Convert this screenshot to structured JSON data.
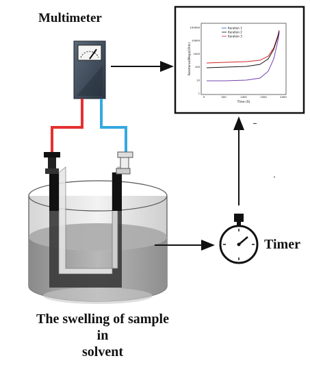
{
  "labels": {
    "multimeter": "Multimeter",
    "timer": "Timer",
    "caption_line1": "The swelling of sample",
    "caption_line2": "in",
    "caption_line3": "solvent"
  },
  "inset_chart": {
    "legend": [
      "Iteration 1",
      "Iteration 2",
      "Iteration 3"
    ],
    "xlabel": "Time (S)",
    "ylabel": "Resistance(Mega)(Ohm)",
    "x_ticks": [
      "0",
      "500",
      "1000",
      "1500",
      "2000"
    ],
    "y_ticks": [
      "100000",
      "10000",
      "1000",
      "100",
      "10",
      "1"
    ]
  },
  "colors": {
    "wire_red": "#e53030",
    "wire_blue": "#35a9e0",
    "meter_body": "#3d4a5a",
    "electrode": "#1a1a1a",
    "liquid": "#9e9e9e"
  },
  "icons": {
    "multimeter": "multimeter-icon",
    "timer": "stopwatch-icon"
  }
}
